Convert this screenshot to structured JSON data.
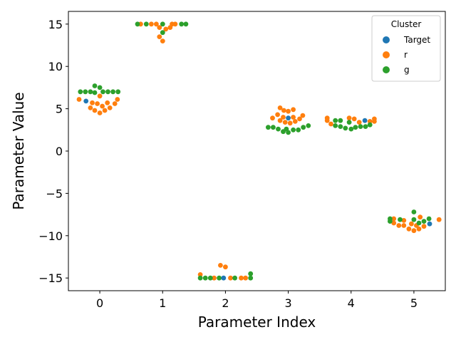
{
  "chart_data": {
    "type": "scatter",
    "subtype": "swarm",
    "title": "",
    "xlabel": "Parameter Index",
    "ylabel": "Parameter Value",
    "categories": [
      "0",
      "1",
      "2",
      "3",
      "4",
      "5"
    ],
    "xlim": [
      -0.5,
      5.5
    ],
    "ylim": [
      -16.5,
      16.5
    ],
    "yticks": [
      -15,
      -10,
      -5,
      0,
      5,
      10,
      15
    ],
    "yticklabels": [
      "−15",
      "−10",
      "−5",
      "0",
      "5",
      "10",
      "15"
    ],
    "grid": false,
    "legend": {
      "title": "Cluster",
      "position": "top-right",
      "entries": [
        "Target",
        "r",
        "g"
      ]
    },
    "series": [
      {
        "name": "Target",
        "color": "#1f77b4",
        "points": [
          {
            "x": -0.22,
            "y": 5.9
          },
          {
            "x": 1.97,
            "y": -15.0
          },
          {
            "x": 3.0,
            "y": 3.9
          },
          {
            "x": 4.22,
            "y": 3.6
          },
          {
            "x": 5.25,
            "y": -8.6
          }
        ]
      },
      {
        "name": "r",
        "color": "#ff7f0e",
        "points": [
          {
            "x": -0.33,
            "y": 6.1
          },
          {
            "x": -0.15,
            "y": 5.1
          },
          {
            "x": -0.08,
            "y": 4.8
          },
          {
            "x": 0.0,
            "y": 4.5
          },
          {
            "x": 0.08,
            "y": 4.8
          },
          {
            "x": 0.16,
            "y": 5.1
          },
          {
            "x": 0.24,
            "y": 5.6
          },
          {
            "x": 0.28,
            "y": 6.1
          },
          {
            "x": -0.12,
            "y": 5.7
          },
          {
            "x": -0.04,
            "y": 5.6
          },
          {
            "x": 0.04,
            "y": 5.3
          },
          {
            "x": 0.12,
            "y": 5.7
          },
          {
            "x": 0.0,
            "y": 6.5
          },
          {
            "x": 0.65,
            "y": 15.0
          },
          {
            "x": 0.82,
            "y": 15.0
          },
          {
            "x": 0.9,
            "y": 15.0
          },
          {
            "x": 1.15,
            "y": 15.0
          },
          {
            "x": 0.95,
            "y": 14.6
          },
          {
            "x": 1.05,
            "y": 14.4
          },
          {
            "x": 1.12,
            "y": 14.6
          },
          {
            "x": 1.2,
            "y": 15.0
          },
          {
            "x": 0.95,
            "y": 13.5
          },
          {
            "x": 1.0,
            "y": 13.0
          },
          {
            "x": 1.6,
            "y": -14.6
          },
          {
            "x": 1.82,
            "y": -15.0
          },
          {
            "x": 1.92,
            "y": -13.5
          },
          {
            "x": 2.0,
            "y": -13.7
          },
          {
            "x": 2.08,
            "y": -15.0
          },
          {
            "x": 2.25,
            "y": -15.0
          },
          {
            "x": 2.32,
            "y": -15.0
          },
          {
            "x": 2.75,
            "y": 3.9
          },
          {
            "x": 2.83,
            "y": 4.3
          },
          {
            "x": 2.87,
            "y": 5.1
          },
          {
            "x": 2.93,
            "y": 4.8
          },
          {
            "x": 3.0,
            "y": 4.7
          },
          {
            "x": 3.08,
            "y": 4.9
          },
          {
            "x": 3.08,
            "y": 4.0
          },
          {
            "x": 2.92,
            "y": 4.0
          },
          {
            "x": 2.87,
            "y": 3.6
          },
          {
            "x": 2.95,
            "y": 3.4
          },
          {
            "x": 3.03,
            "y": 3.3
          },
          {
            "x": 3.11,
            "y": 3.5
          },
          {
            "x": 3.18,
            "y": 3.8
          },
          {
            "x": 3.23,
            "y": 4.2
          },
          {
            "x": 3.62,
            "y": 3.9
          },
          {
            "x": 3.62,
            "y": 3.6
          },
          {
            "x": 3.68,
            "y": 3.2
          },
          {
            "x": 3.97,
            "y": 3.9
          },
          {
            "x": 4.05,
            "y": 3.8
          },
          {
            "x": 4.13,
            "y": 3.4
          },
          {
            "x": 4.3,
            "y": 3.5
          },
          {
            "x": 4.37,
            "y": 3.8
          },
          {
            "x": 4.37,
            "y": 3.5
          },
          {
            "x": 4.68,
            "y": -8.0
          },
          {
            "x": 4.68,
            "y": -8.5
          },
          {
            "x": 4.76,
            "y": -8.8
          },
          {
            "x": 4.84,
            "y": -8.8
          },
          {
            "x": 4.84,
            "y": -8.2
          },
          {
            "x": 4.92,
            "y": -9.2
          },
          {
            "x": 4.96,
            "y": -8.6
          },
          {
            "x": 5.0,
            "y": -9.4
          },
          {
            "x": 5.04,
            "y": -8.8
          },
          {
            "x": 5.08,
            "y": -9.2
          },
          {
            "x": 5.1,
            "y": -7.8
          },
          {
            "x": 5.16,
            "y": -8.9
          },
          {
            "x": 5.4,
            "y": -8.1
          }
        ]
      },
      {
        "name": "g",
        "color": "#2ca02c",
        "points": [
          {
            "x": -0.31,
            "y": 7.0
          },
          {
            "x": -0.23,
            "y": 7.0
          },
          {
            "x": -0.15,
            "y": 7.0
          },
          {
            "x": -0.08,
            "y": 6.9
          },
          {
            "x": -0.08,
            "y": 7.7
          },
          {
            "x": 0.0,
            "y": 7.5
          },
          {
            "x": 0.05,
            "y": 7.0
          },
          {
            "x": 0.13,
            "y": 7.0
          },
          {
            "x": 0.21,
            "y": 7.0
          },
          {
            "x": 0.29,
            "y": 7.0
          },
          {
            "x": 0.6,
            "y": 15.0
          },
          {
            "x": 0.74,
            "y": 15.0
          },
          {
            "x": 1.0,
            "y": 15.0
          },
          {
            "x": 1.0,
            "y": 14.0
          },
          {
            "x": 1.3,
            "y": 15.0
          },
          {
            "x": 1.37,
            "y": 15.0
          },
          {
            "x": 1.6,
            "y": -15.0
          },
          {
            "x": 1.68,
            "y": -15.0
          },
          {
            "x": 1.76,
            "y": -15.0
          },
          {
            "x": 1.9,
            "y": -15.0
          },
          {
            "x": 2.15,
            "y": -15.0
          },
          {
            "x": 2.4,
            "y": -15.0
          },
          {
            "x": 2.4,
            "y": -14.5
          },
          {
            "x": 2.68,
            "y": 2.8
          },
          {
            "x": 2.76,
            "y": 2.8
          },
          {
            "x": 2.84,
            "y": 2.6
          },
          {
            "x": 2.92,
            "y": 2.3
          },
          {
            "x": 2.97,
            "y": 2.6
          },
          {
            "x": 3.0,
            "y": 2.2
          },
          {
            "x": 3.08,
            "y": 2.5
          },
          {
            "x": 3.16,
            "y": 2.5
          },
          {
            "x": 3.24,
            "y": 2.8
          },
          {
            "x": 3.32,
            "y": 3.0
          },
          {
            "x": 3.75,
            "y": 3.6
          },
          {
            "x": 3.75,
            "y": 3.0
          },
          {
            "x": 3.83,
            "y": 3.6
          },
          {
            "x": 3.83,
            "y": 2.9
          },
          {
            "x": 3.91,
            "y": 2.7
          },
          {
            "x": 3.97,
            "y": 3.4
          },
          {
            "x": 4.0,
            "y": 2.6
          },
          {
            "x": 4.07,
            "y": 2.8
          },
          {
            "x": 4.15,
            "y": 2.9
          },
          {
            "x": 4.23,
            "y": 2.9
          },
          {
            "x": 4.3,
            "y": 3.1
          },
          {
            "x": 4.62,
            "y": -8.0
          },
          {
            "x": 4.62,
            "y": -8.3
          },
          {
            "x": 4.78,
            "y": -8.1
          },
          {
            "x": 5.0,
            "y": -7.2
          },
          {
            "x": 5.0,
            "y": -8.1
          },
          {
            "x": 5.08,
            "y": -8.5
          },
          {
            "x": 5.16,
            "y": -8.3
          },
          {
            "x": 5.24,
            "y": -8.0
          }
        ]
      }
    ]
  }
}
